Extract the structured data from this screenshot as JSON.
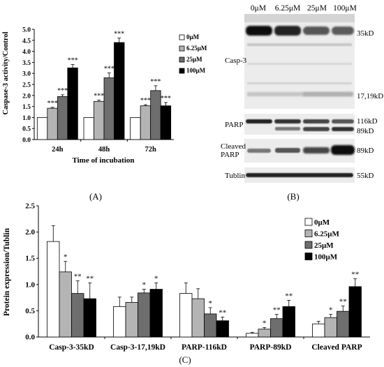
{
  "panel_labels": {
    "a": "(A)",
    "b": "(B)",
    "c": "(C)"
  },
  "colors": {
    "0uM": "#ffffff",
    "6.25uM": "#b4b4b4",
    "25uM": "#6e6e6e",
    "100uM": "#000000"
  },
  "chart_data": [
    {
      "type": "bar",
      "panel": "(A)",
      "categories": [
        "24h",
        "48h",
        "72h"
      ],
      "xlabel": "Time of incubation",
      "ylabel": "Caspase-3 activity/Control",
      "ylim": [
        0,
        5
      ],
      "yticks": [
        "0.0",
        "0.5",
        "1.0",
        "1.5",
        "2.0",
        "2.5",
        "3.0",
        "3.5",
        "4.0",
        "4.5",
        "5.0"
      ],
      "legend_position": "right",
      "series": [
        {
          "name": "0μM",
          "values": [
            1.0,
            1.0,
            1.0
          ],
          "errors": [
            0,
            0,
            0
          ],
          "sig": [
            "",
            "",
            ""
          ]
        },
        {
          "name": "6.25μM",
          "values": [
            1.42,
            1.73,
            1.53
          ],
          "errors": [
            0.04,
            0.06,
            0.05
          ],
          "sig": [
            "***",
            "***",
            "***"
          ]
        },
        {
          "name": "25μM",
          "values": [
            1.95,
            2.8,
            2.22
          ],
          "errors": [
            0.08,
            0.22,
            0.22
          ],
          "sig": [
            "***",
            "***",
            "***"
          ]
        },
        {
          "name": "100μM",
          "values": [
            3.25,
            4.4,
            1.53
          ],
          "errors": [
            0.15,
            0.2,
            0.15
          ],
          "sig": [
            "***",
            "***",
            "***"
          ]
        }
      ]
    },
    {
      "type": "bar",
      "panel": "(C)",
      "categories": [
        "Casp-3-35kD",
        "Casp-3-17,19kD",
        "PARP-116kD",
        "PARP-89kD",
        "Cleaved PARP"
      ],
      "xlabel": "",
      "ylabel": "Protein expression/Tublin",
      "ylim": [
        0,
        2.5
      ],
      "yticks": [
        "0.0",
        "0.5",
        "1.0",
        "1.5",
        "2.0",
        "2.5"
      ],
      "legend_position": "top-right",
      "series": [
        {
          "name": "0μM",
          "values": [
            1.82,
            0.58,
            0.83,
            0.07,
            0.25
          ],
          "errors": [
            0.3,
            0.18,
            0.2,
            0.02,
            0.05
          ],
          "sig": [
            "",
            "",
            "",
            "",
            ""
          ]
        },
        {
          "name": "6.25μM",
          "values": [
            1.24,
            0.66,
            0.73,
            0.15,
            0.37
          ],
          "errors": [
            0.2,
            0.1,
            0.19,
            0.03,
            0.06
          ],
          "sig": [
            "*",
            "",
            "",
            "*",
            "*"
          ]
        },
        {
          "name": "25μM",
          "values": [
            0.83,
            0.84,
            0.44,
            0.35,
            0.49
          ],
          "errors": [
            0.24,
            0.07,
            0.12,
            0.08,
            0.1
          ],
          "sig": [
            "**",
            "*",
            "*",
            "**",
            "**"
          ]
        },
        {
          "name": "100μM",
          "values": [
            0.73,
            0.91,
            0.31,
            0.58,
            0.96
          ],
          "errors": [
            0.3,
            0.12,
            0.07,
            0.12,
            0.15
          ],
          "sig": [
            "**",
            "*",
            "**",
            "**",
            "**"
          ]
        }
      ]
    }
  ],
  "western_blot": {
    "panel": "(B)",
    "lanes": [
      "0μM",
      "6.25μM",
      "25μM",
      "100μM"
    ],
    "rows": [
      {
        "label": "Casp-3",
        "markers": [
          "35kD",
          "17,19kD"
        ]
      },
      {
        "label": "PARP",
        "markers": [
          "116kD",
          "89kD"
        ]
      },
      {
        "label": "Cleaved\nPARP",
        "markers": [
          "89kD"
        ]
      },
      {
        "label": "Tublin",
        "markers": [
          "55kD"
        ]
      }
    ]
  }
}
